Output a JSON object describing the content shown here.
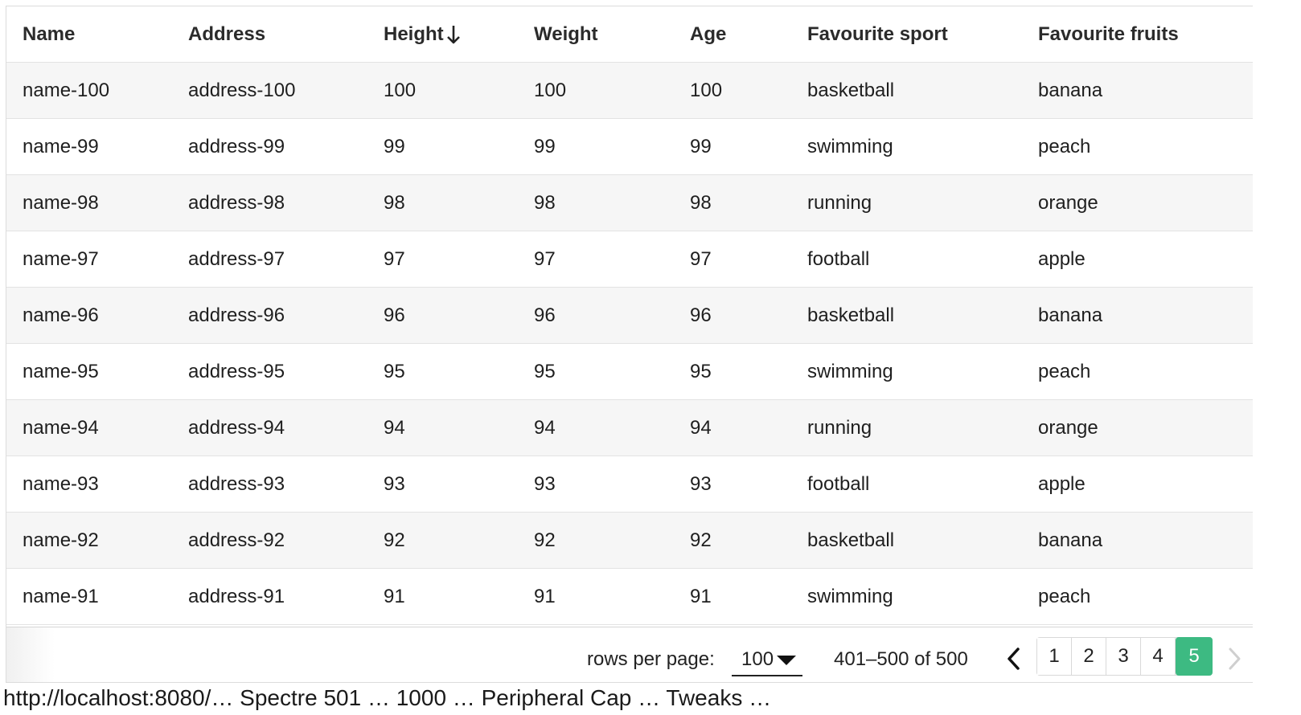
{
  "table": {
    "columns": [
      "Name",
      "Address",
      "Height",
      "Weight",
      "Age",
      "Favourite sport",
      "Favourite fruits"
    ],
    "sorted_column": "Height",
    "sort_direction": "descending",
    "rows": [
      [
        "name-100",
        "address-100",
        "100",
        "100",
        "100",
        "basketball",
        "banana"
      ],
      [
        "name-99",
        "address-99",
        "99",
        "99",
        "99",
        "swimming",
        "peach"
      ],
      [
        "name-98",
        "address-98",
        "98",
        "98",
        "98",
        "running",
        "orange"
      ],
      [
        "name-97",
        "address-97",
        "97",
        "97",
        "97",
        "football",
        "apple"
      ],
      [
        "name-96",
        "address-96",
        "96",
        "96",
        "96",
        "basketball",
        "banana"
      ],
      [
        "name-95",
        "address-95",
        "95",
        "95",
        "95",
        "swimming",
        "peach"
      ],
      [
        "name-94",
        "address-94",
        "94",
        "94",
        "94",
        "running",
        "orange"
      ],
      [
        "name-93",
        "address-93",
        "93",
        "93",
        "93",
        "football",
        "apple"
      ],
      [
        "name-92",
        "address-92",
        "92",
        "92",
        "92",
        "basketball",
        "banana"
      ],
      [
        "name-91",
        "address-91",
        "91",
        "91",
        "91",
        "swimming",
        "peach"
      ]
    ]
  },
  "footer": {
    "rows_per_page_label": "rows per page:",
    "rows_per_page_value": "100",
    "range_text": "401–500 of 500",
    "pages": [
      "1",
      "2",
      "3",
      "4",
      "5"
    ],
    "active_page": "5",
    "prev_icon": "chevron-left-icon",
    "next_icon": "chevron-right-icon",
    "accent_color": "#3dba82"
  },
  "status_bar": {
    "url_partial": "http://localhost:8080/… Spectre 501 … 1000 … Peripheral Cap … Tweaks …"
  }
}
